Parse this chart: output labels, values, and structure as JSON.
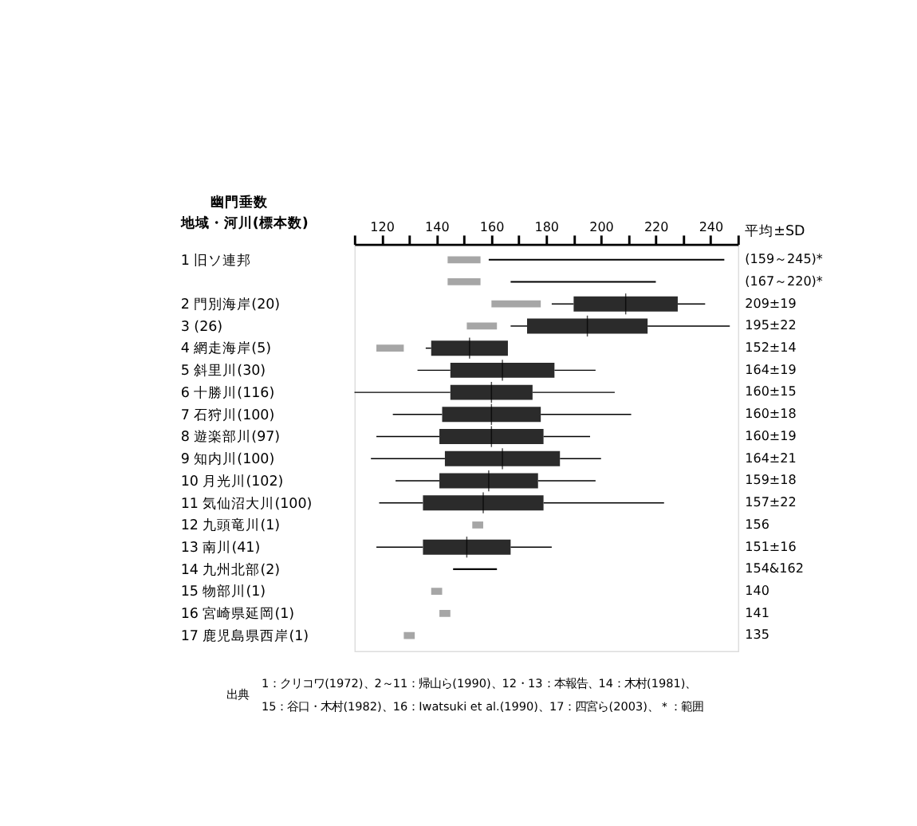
{
  "chart_data": {
    "type": "box",
    "orientation": "horizontal",
    "xlabel": "幽門垂数",
    "ylabel": "地域・河川(標本数)",
    "y2label": "平均±SD",
    "categories": [
      "1 旧ソ連邦",
      null,
      "2 門別海岸(20)",
      "3 (26)",
      "4 網走海岸(5)",
      "5 斜里川(30)",
      "6 十勝川(116)",
      "7 石狩川(100)",
      "8 遊楽部川(97)",
      "9 知内川(100)",
      "10 月光川(102)",
      "11 気仙沼大川(100)",
      "12 九頭竜川(1)",
      "13 南川(41)",
      "14 九州北部(2)",
      "15 物部川(1)",
      "16 宮崎県延岡(1)",
      "17 鹿児島県西岸(1)"
    ],
    "value_labels": [
      "(159～245)*",
      "(167～220)*",
      "209±19",
      "195±22",
      "152±14",
      "164±19",
      "160±15",
      "160±18",
      "160±19",
      "164±21",
      "159±18",
      "157±22",
      "156",
      "151±16",
      "154&162",
      "140",
      "141",
      "135"
    ],
    "xlim": [
      110,
      250
    ],
    "xticks": [
      {
        "value": 110,
        "label": null
      },
      120,
      {
        "value": 130,
        "label": null
      },
      140,
      {
        "value": 150,
        "label": null
      },
      160,
      {
        "value": 170,
        "label": null
      },
      180,
      {
        "value": 190,
        "label": null
      },
      200,
      {
        "value": 210,
        "label": null
      },
      220,
      {
        "value": 230,
        "label": null
      },
      240,
      {
        "value": 250,
        "label": null
      }
    ],
    "grid": false,
    "series": [
      {
        "color": "#2b2b2b",
        "boxes": [
          null,
          null,
          {
            "low": 182,
            "q1": 190,
            "median": 209,
            "q3": 228,
            "high": 238
          },
          {
            "low": 167,
            "q1": 173,
            "median": 195,
            "q3": 217,
            "high": 247
          },
          {
            "low": 136,
            "q1": 138,
            "median": 152,
            "q3": 166,
            "high": 166
          },
          {
            "low": 133,
            "q1": 145,
            "median": 164,
            "q3": 183,
            "high": 198
          },
          {
            "low": 110,
            "q1": 145,
            "median": 160,
            "q3": 175,
            "high": 205
          },
          {
            "low": 124,
            "q1": 142,
            "median": 160,
            "q3": 178,
            "high": 211
          },
          {
            "low": 118,
            "q1": 141,
            "median": 160,
            "q3": 179,
            "high": 196
          },
          {
            "low": 116,
            "q1": 143,
            "median": 164,
            "q3": 185,
            "high": 200
          },
          {
            "low": 125,
            "q1": 141,
            "median": 159,
            "q3": 177,
            "high": 198
          },
          {
            "low": 119,
            "q1": 135,
            "median": 157,
            "q3": 179,
            "high": 223
          },
          null,
          {
            "low": 118,
            "q1": 135,
            "median": 151,
            "q3": 167,
            "high": 182
          },
          null,
          null,
          null,
          null
        ]
      },
      {
        "type": "bar",
        "color": "#000000",
        "base": [
          159,
          167,
          null,
          null,
          null,
          null,
          null,
          null,
          null,
          null,
          null,
          null,
          null,
          null,
          146,
          null,
          null,
          null
        ],
        "values": [
          86,
          53,
          null,
          null,
          null,
          null,
          null,
          null,
          null,
          null,
          null,
          null,
          null,
          null,
          16,
          null,
          null,
          null
        ]
      },
      {
        "type": "bar",
        "color": "#a6a6a6",
        "base": [
          144,
          144,
          160,
          151,
          118,
          null,
          null,
          null,
          null,
          null,
          null,
          null,
          153,
          null,
          null,
          138,
          141,
          128
        ],
        "values": [
          12,
          12,
          18,
          11,
          10,
          null,
          null,
          null,
          null,
          null,
          null,
          null,
          4,
          null,
          null,
          4,
          4,
          4
        ]
      }
    ],
    "annotations": [
      "出典",
      "1：クリコワ(1972)、2～11：帰山ら(1990)、12・13：本報告、14：木村(1981)、",
      "15：谷口・木村(1982)、16：Iwatsuki et al.(1990)、17：四宮ら(2003)、＊：範囲"
    ]
  }
}
